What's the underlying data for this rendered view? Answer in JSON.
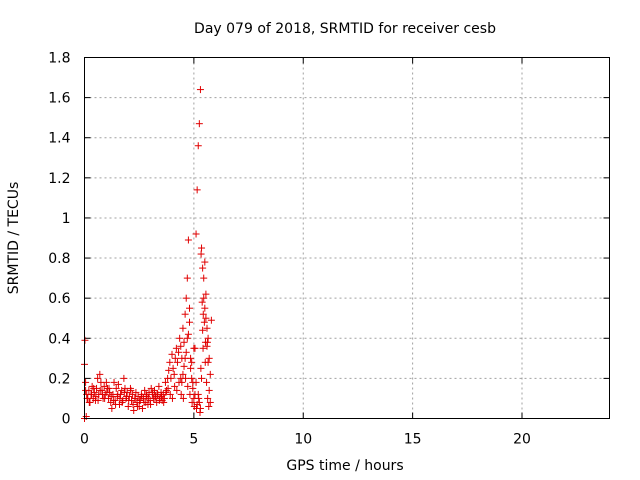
{
  "chart_data": {
    "type": "scatter",
    "title": "Day 079 of 2018, SRMTID for receiver cesb",
    "xlabel": "GPS time / hours",
    "ylabel": "SRMTID / TECUs",
    "xlim": [
      0,
      24
    ],
    "ylim": [
      0,
      1.8
    ],
    "xticks": [
      0,
      5,
      10,
      15,
      20
    ],
    "xtick_labels": [
      "0",
      "5",
      "10",
      "15",
      "20"
    ],
    "yticks": [
      0,
      0.2,
      0.4,
      0.6,
      0.8,
      1.0,
      1.2,
      1.4,
      1.6,
      1.8
    ],
    "ytick_labels": [
      "0",
      "0.2",
      "0.4",
      "0.6",
      "0.8",
      "1",
      "1.2",
      "1.4",
      "1.6",
      "1.8"
    ],
    "grid": true,
    "marker": "+",
    "series": [
      {
        "name": "SRMTID",
        "color": "#e00000",
        "x": [
          0.0,
          0.02,
          0.05,
          0.08,
          0.1,
          0.15,
          0.2,
          0.25,
          0.3,
          0.35,
          0.4,
          0.45,
          0.5,
          0.55,
          0.6,
          0.65,
          0.7,
          0.75,
          0.8,
          0.85,
          0.9,
          0.95,
          1.0,
          1.05,
          1.1,
          1.15,
          1.2,
          1.25,
          1.3,
          1.35,
          1.4,
          1.45,
          1.5,
          1.55,
          1.6,
          1.65,
          1.7,
          1.75,
          1.8,
          1.85,
          1.9,
          1.95,
          2.0,
          2.05,
          2.1,
          2.15,
          2.2,
          2.25,
          2.3,
          2.35,
          2.4,
          2.45,
          2.5,
          2.55,
          2.6,
          2.65,
          2.7,
          2.75,
          2.8,
          2.85,
          2.9,
          2.95,
          3.0,
          3.05,
          3.1,
          3.15,
          3.2,
          3.25,
          3.3,
          3.35,
          3.4,
          3.45,
          3.5,
          3.55,
          3.6,
          3.65,
          3.7,
          3.75,
          3.8,
          3.85,
          3.9,
          3.95,
          4.0,
          4.05,
          4.1,
          4.15,
          4.2,
          4.25,
          4.3,
          4.35,
          4.4,
          4.45,
          4.5,
          4.55,
          4.6,
          4.65,
          4.7,
          4.75,
          4.8,
          4.85,
          4.9,
          4.95,
          5.0,
          5.05,
          5.1,
          5.15,
          5.2,
          5.25,
          5.3,
          5.35,
          5.4,
          5.45,
          5.5,
          5.55,
          5.6,
          5.65,
          5.7,
          5.75,
          5.8,
          0.0,
          0.05,
          0.12,
          0.22,
          0.32,
          0.42,
          0.52,
          0.62,
          0.72,
          0.82,
          0.92,
          1.02,
          1.12,
          1.22,
          1.32,
          1.42,
          1.52,
          1.62,
          1.72,
          1.82,
          1.92,
          2.02,
          2.12,
          2.22,
          2.32,
          2.42,
          2.52,
          2.62,
          2.72,
          2.82,
          2.92,
          3.02,
          3.12,
          3.22,
          3.32,
          3.42,
          3.52,
          3.62,
          3.72,
          3.82,
          3.92,
          4.02,
          4.12,
          4.22,
          4.32,
          4.42,
          4.52,
          4.62,
          4.72,
          4.82,
          4.92,
          5.02,
          5.12,
          5.22,
          5.32,
          5.42,
          5.52,
          5.62,
          4.5,
          4.6,
          4.7,
          4.8,
          4.9,
          5.0,
          5.1,
          5.2,
          5.25,
          5.3,
          5.35,
          5.4,
          5.45,
          5.5,
          5.55,
          5.6,
          5.65,
          5.7,
          5.75,
          4.4,
          4.45,
          4.55,
          4.65,
          4.75,
          4.85,
          4.95,
          5.05,
          5.15,
          5.28,
          5.33,
          5.38,
          5.43,
          5.48,
          5.53,
          5.58,
          5.63,
          5.68
        ],
        "y": [
          0.27,
          0.39,
          0.18,
          0.01,
          0.12,
          0.1,
          0.14,
          0.08,
          0.12,
          0.16,
          0.1,
          0.13,
          0.09,
          0.15,
          0.2,
          0.12,
          0.22,
          0.18,
          0.14,
          0.1,
          0.16,
          0.12,
          0.18,
          0.15,
          0.1,
          0.13,
          0.08,
          0.05,
          0.12,
          0.18,
          0.09,
          0.15,
          0.11,
          0.17,
          0.07,
          0.12,
          0.14,
          0.09,
          0.2,
          0.15,
          0.1,
          0.13,
          0.06,
          0.11,
          0.15,
          0.09,
          0.12,
          0.04,
          0.1,
          0.13,
          0.08,
          0.11,
          0.06,
          0.09,
          0.12,
          0.05,
          0.1,
          0.14,
          0.08,
          0.11,
          0.07,
          0.13,
          0.09,
          0.15,
          0.12,
          0.1,
          0.14,
          0.11,
          0.08,
          0.12,
          0.16,
          0.1,
          0.13,
          0.09,
          0.12,
          0.1,
          0.18,
          0.14,
          0.2,
          0.24,
          0.28,
          0.2,
          0.32,
          0.25,
          0.22,
          0.3,
          0.35,
          0.28,
          0.33,
          0.4,
          0.36,
          0.3,
          0.45,
          0.38,
          0.52,
          0.6,
          0.7,
          0.89,
          0.48,
          0.3,
          0.2,
          0.15,
          0.1,
          0.35,
          0.92,
          1.14,
          1.36,
          1.47,
          1.64,
          0.85,
          0.75,
          0.6,
          0.55,
          0.5,
          0.45,
          0.4,
          0.3,
          0.22,
          0.49,
          0.0,
          0.14,
          0.1,
          0.08,
          0.12,
          0.15,
          0.11,
          0.09,
          0.14,
          0.12,
          0.1,
          0.13,
          0.15,
          0.11,
          0.09,
          0.07,
          0.12,
          0.1,
          0.08,
          0.13,
          0.11,
          0.09,
          0.14,
          0.07,
          0.1,
          0.06,
          0.09,
          0.11,
          0.08,
          0.12,
          0.1,
          0.07,
          0.13,
          0.1,
          0.12,
          0.09,
          0.11,
          0.08,
          0.13,
          0.15,
          0.12,
          0.1,
          0.16,
          0.14,
          0.18,
          0.12,
          0.1,
          0.2,
          0.16,
          0.12,
          0.08,
          0.06,
          0.05,
          0.1,
          0.25,
          0.35,
          0.28,
          0.38,
          0.22,
          0.3,
          0.4,
          0.55,
          0.28,
          0.35,
          0.18,
          0.12,
          0.08,
          0.05,
          0.2,
          0.44,
          0.7,
          0.78,
          0.62,
          0.36,
          0.28,
          0.14,
          0.08,
          0.2,
          0.18,
          0.26,
          0.33,
          0.42,
          0.25,
          0.18,
          0.12,
          0.07,
          0.03,
          0.82,
          0.58,
          0.52,
          0.48,
          0.38,
          0.18,
          0.1,
          0.06
        ]
      }
    ]
  }
}
